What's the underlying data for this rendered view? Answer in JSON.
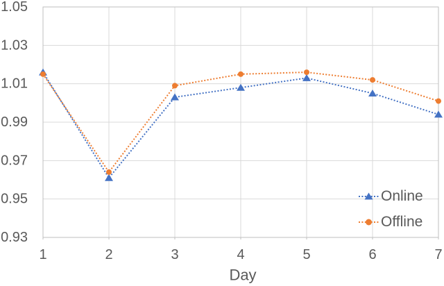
{
  "chart_data": {
    "type": "line",
    "title": "",
    "xlabel": "Day",
    "ylabel": "",
    "x": [
      1,
      2,
      3,
      4,
      5,
      6,
      7
    ],
    "x_tick_labels": [
      "1",
      "2",
      "3",
      "4",
      "5",
      "6",
      "7"
    ],
    "y_tick_labels": [
      "0.93",
      "0.95",
      "0.97",
      "0.99",
      "1.01",
      "1.03",
      "1.05"
    ],
    "xlim": [
      1,
      7
    ],
    "ylim": [
      0.93,
      1.05
    ],
    "grid": true,
    "legend_position": "inside-right",
    "series": [
      {
        "name": "Online",
        "color": "#4472C4",
        "marker": "triangle",
        "line_style": "dotted",
        "values": [
          1.016,
          0.961,
          1.003,
          1.008,
          1.013,
          1.005,
          0.994
        ]
      },
      {
        "name": "Offline",
        "color": "#ED7D31",
        "marker": "circle",
        "line_style": "dotted",
        "values": [
          1.015,
          0.964,
          1.009,
          1.015,
          1.016,
          1.012,
          1.001
        ]
      }
    ]
  },
  "style": {
    "grid_color": "#D9D9D9",
    "axis_color": "#BFBFBF",
    "text_color": "#595959",
    "background": "#ffffff"
  }
}
